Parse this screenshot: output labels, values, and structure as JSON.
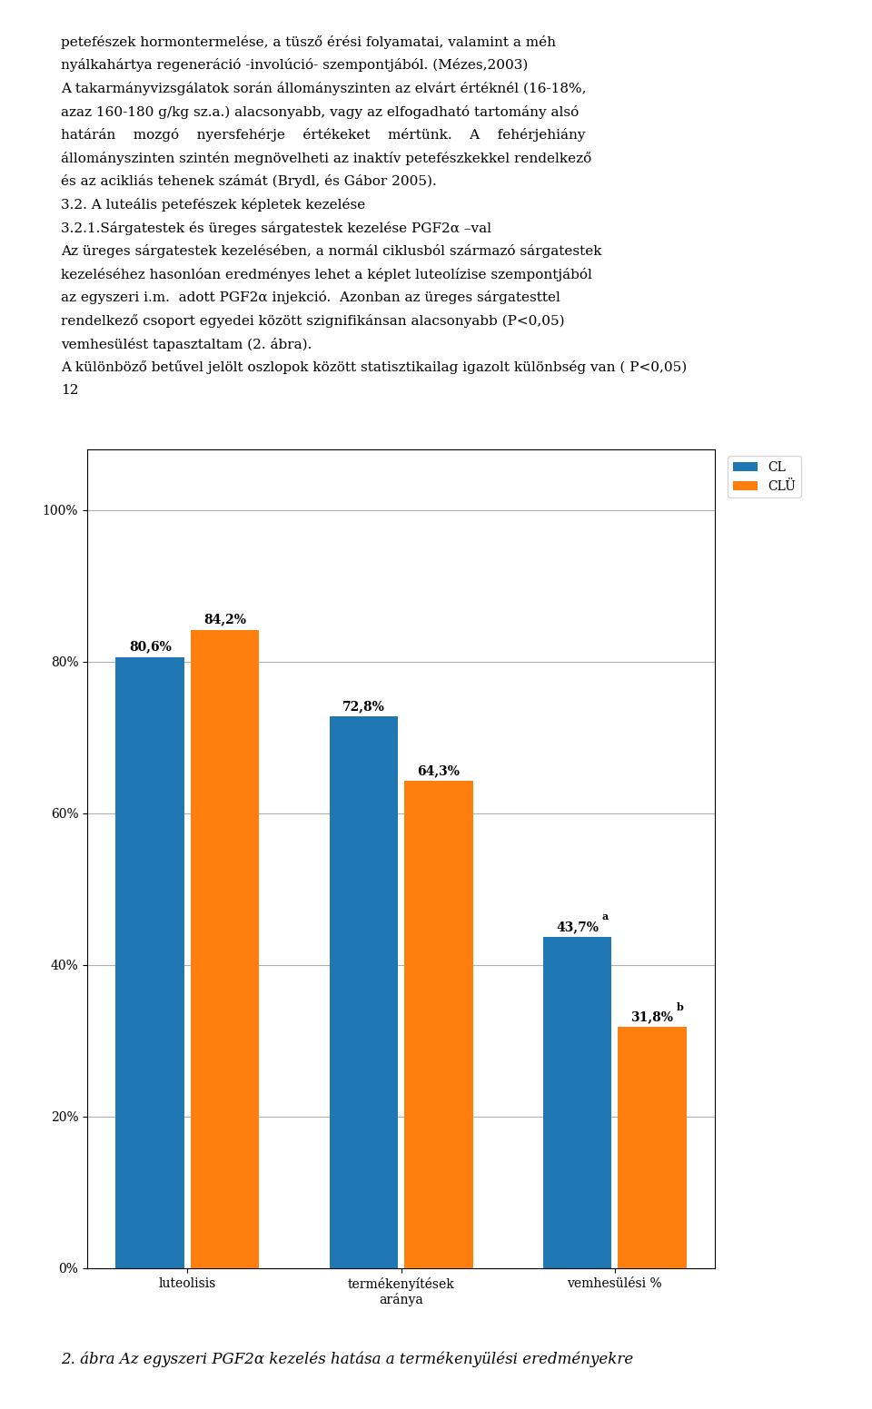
{
  "chart_data": {
    "type": "bar",
    "title": "2. ábra Az egyszeri PGF2α kezelés hatása a termékenyülési eredményekre",
    "annotations": [
      "petefészek hormontermelése, a tüsző érési folyamatai, valamint a méh",
      "nyálkahártya regeneráció -involúció- szempontjából. (Mézes,2003)",
      "A takarmányvizsgálatok során állományszinten az elvárt értéknél (16-18%,",
      "azaz 160-180 g/kg sz.a.) alacsonyabb, vagy az elfogadható tartomány alsó",
      "határán    mozgó    nyersfehérje    értékeket    mértünk.    A    fehérjehiány",
      "állományszinten szintén megnövelheti az inaktív petefészkekkel rendelkező",
      "és az acikliás tehenek számát (Brydl, és Gábor 2005).",
      "3.2. A luteális petefészek képletek kezelése",
      "3.2.1.Sárgatestek és üreges sárgatestek kezelése PGF2α –val",
      "Az üreges sárgatestek kezelésében, a normál ciklusból származó sárgatestek",
      "kezeléséhez hasonlóan eredményes lehet a képlet luteolízise szempontjából",
      "az egyszeri i.m.  adott PGF2α injekció.  Azonban az üreges sárgatesttel",
      "rendelkező csoport egyedei között szignifikánsan alacsonyabb (P<0,05)",
      "vemhesülést tapasztaltam (2. ábra).",
      "A különböző betűvel jelölt oszlopok között statisztikailag igazolt különbség van ( P<0,05)",
      "12"
    ],
    "categories": [
      "luteolisis",
      "termékenyítések\naránya",
      "vemhesülési %"
    ],
    "series": [
      {
        "name": "CL",
        "values": [
          80.6,
          72.8,
          43.7
        ],
        "value_labels": [
          "80,6%",
          "72,8%",
          "43,7%"
        ],
        "annotations": [
          null,
          null,
          "a"
        ]
      },
      {
        "name": "CLÜ",
        "values": [
          84.2,
          64.3,
          31.8
        ],
        "value_labels": [
          "84,2%",
          "64,3%",
          "31,8%"
        ],
        "annotations": [
          null,
          null,
          "b"
        ]
      }
    ],
    "ylim": [
      0,
      108
    ],
    "yticks": [
      {
        "value": 0,
        "label": "0%"
      },
      {
        "value": 20,
        "label": "20%"
      },
      {
        "value": 40,
        "label": "40%"
      },
      {
        "value": 60,
        "label": "60%"
      },
      {
        "value": 80,
        "label": "80%"
      },
      {
        "value": 100,
        "label": "100%"
      }
    ],
    "grid": true,
    "legend": "upper left",
    "data_labels": true
  }
}
